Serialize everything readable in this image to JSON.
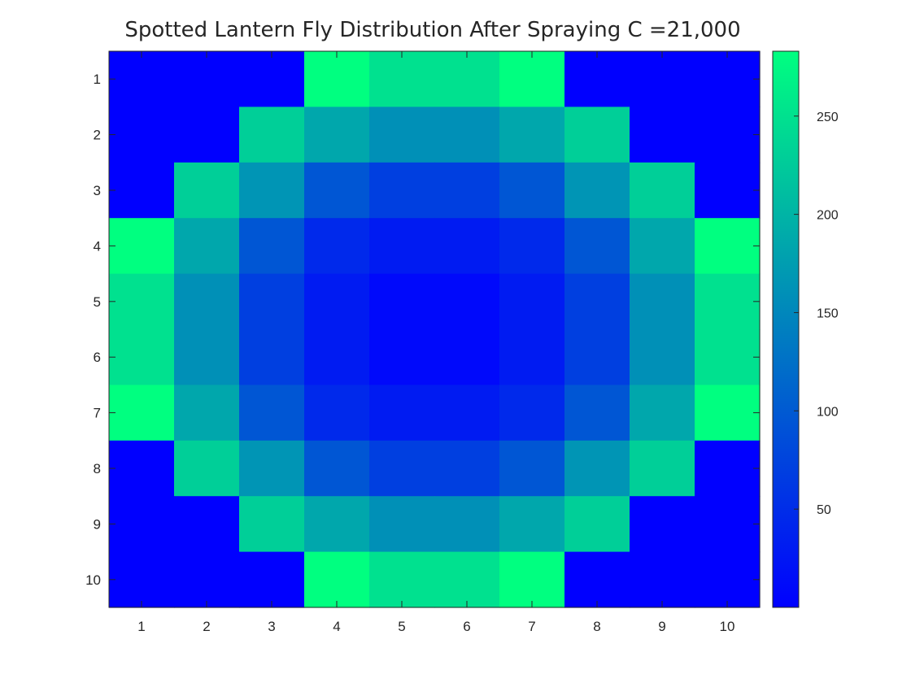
{
  "chart_data": {
    "type": "heatmap",
    "title": "Spotted Lantern Fly Distribution After Spraying C =21,000",
    "xlabel": "",
    "ylabel": "",
    "x_ticks": [
      "1",
      "2",
      "3",
      "4",
      "5",
      "6",
      "7",
      "8",
      "9",
      "10"
    ],
    "y_ticks": [
      "1",
      "2",
      "3",
      "4",
      "5",
      "6",
      "7",
      "8",
      "9",
      "10"
    ],
    "colormap": "winter",
    "color_low": "#0000FF",
    "color_high": "#00FF80",
    "clim": [
      0,
      283
    ],
    "colorbar_ticks": [
      50,
      100,
      150,
      200,
      250
    ],
    "grid": false,
    "values": [
      [
        0,
        0,
        0,
        283,
        250,
        250,
        283,
        0,
        0,
        0
      ],
      [
        0,
        0,
        230,
        185,
        160,
        160,
        185,
        230,
        0,
        0
      ],
      [
        0,
        230,
        165,
        95,
        70,
        70,
        95,
        165,
        230,
        0
      ],
      [
        283,
        185,
        95,
        45,
        30,
        30,
        45,
        95,
        185,
        283
      ],
      [
        250,
        160,
        70,
        30,
        10,
        10,
        30,
        70,
        160,
        250
      ],
      [
        250,
        160,
        70,
        30,
        10,
        10,
        30,
        70,
        160,
        250
      ],
      [
        283,
        185,
        95,
        45,
        30,
        30,
        45,
        95,
        185,
        283
      ],
      [
        0,
        230,
        165,
        95,
        70,
        70,
        95,
        165,
        230,
        0
      ],
      [
        0,
        0,
        230,
        185,
        160,
        160,
        185,
        230,
        0,
        0
      ],
      [
        0,
        0,
        0,
        283,
        250,
        250,
        283,
        0,
        0,
        0
      ]
    ]
  }
}
